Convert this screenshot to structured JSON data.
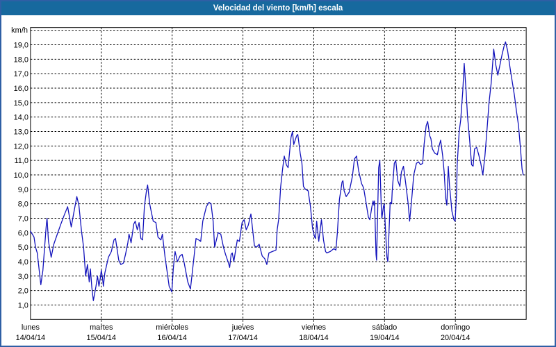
{
  "window": {
    "title": "Velocidad del viento [km/h] escala"
  },
  "chart_data": {
    "type": "line",
    "title": "Velocidad del viento [km/h] escala",
    "ylabel": "km/h",
    "ylim": [
      0,
      20
    ],
    "grid": "dashed",
    "legend": "none",
    "line_color": "#1111bb",
    "y_tick_labels": [
      "1,0",
      "2,0",
      "3,0",
      "4,0",
      "5,0",
      "6,0",
      "7,0",
      "8,0",
      "9,0",
      "10,0",
      "11,0",
      "12,0",
      "13,0",
      "14,0",
      "15,0",
      "16,0",
      "17,0",
      "18,0",
      "19,0"
    ],
    "days": [
      {
        "name": "lunes",
        "date": "14/04/14"
      },
      {
        "name": "martes",
        "date": "15/04/14"
      },
      {
        "name": "miércoles",
        "date": "16/04/14"
      },
      {
        "name": "jueves",
        "date": "17/04/14"
      },
      {
        "name": "viernes",
        "date": "18/04/14"
      },
      {
        "name": "sábado",
        "date": "19/04/14"
      },
      {
        "name": "domingo",
        "date": "20/04/14"
      }
    ],
    "x_unit": "hours_from_start",
    "x_range": [
      0,
      168
    ],
    "series": [
      {
        "name": "Velocidad del viento [km/h]",
        "color": "#1111bb",
        "points": [
          [
            0,
            6.1
          ],
          [
            0.6,
            5.9
          ],
          [
            1.2,
            5.7
          ],
          [
            1.7,
            5.0
          ],
          [
            2.3,
            4.6
          ],
          [
            2.9,
            3.5
          ],
          [
            3.5,
            2.4
          ],
          [
            4.2,
            3.4
          ],
          [
            4.8,
            5.0
          ],
          [
            5.3,
            6.4
          ],
          [
            5.6,
            7.0
          ],
          [
            6.1,
            5.4
          ],
          [
            7.0,
            4.3
          ],
          [
            7.9,
            5.2
          ],
          [
            9.1,
            5.9
          ],
          [
            10.3,
            6.6
          ],
          [
            11.4,
            7.2
          ],
          [
            12.6,
            7.8
          ],
          [
            13.3,
            7.0
          ],
          [
            13.8,
            6.4
          ],
          [
            14.7,
            7.4
          ],
          [
            15.7,
            8.5
          ],
          [
            16.4,
            7.9
          ],
          [
            17.3,
            6.1
          ],
          [
            18.0,
            5.0
          ],
          [
            18.7,
            3.0
          ],
          [
            19.3,
            3.8
          ],
          [
            19.9,
            2.6
          ],
          [
            20.3,
            3.5
          ],
          [
            20.8,
            2.2
          ],
          [
            21.3,
            1.3
          ],
          [
            22.2,
            2.3
          ],
          [
            22.7,
            3.0
          ],
          [
            23.2,
            2.3
          ],
          [
            23.7,
            2.9
          ],
          [
            24.0,
            3.4
          ],
          [
            24.4,
            2.9
          ],
          [
            24.7,
            2.3
          ],
          [
            25.2,
            3.2
          ],
          [
            26.4,
            4.3
          ],
          [
            27.4,
            4.7
          ],
          [
            28.3,
            5.5
          ],
          [
            28.8,
            5.6
          ],
          [
            29.9,
            4.1
          ],
          [
            30.6,
            3.8
          ],
          [
            31.5,
            3.9
          ],
          [
            32.2,
            4.5
          ],
          [
            33.0,
            5.3
          ],
          [
            33.4,
            5.9
          ],
          [
            34.1,
            5.3
          ],
          [
            35.0,
            6.6
          ],
          [
            35.5,
            6.8
          ],
          [
            36.2,
            6.2
          ],
          [
            36.8,
            6.7
          ],
          [
            37.4,
            5.6
          ],
          [
            38.0,
            5.5
          ],
          [
            38.6,
            7.8
          ],
          [
            39.3,
            8.9
          ],
          [
            39.7,
            9.3
          ],
          [
            40.4,
            8.0
          ],
          [
            40.9,
            7.5
          ],
          [
            41.6,
            6.8
          ],
          [
            42.5,
            6.7
          ],
          [
            43.2,
            5.7
          ],
          [
            44.2,
            5.5
          ],
          [
            44.7,
            5.9
          ],
          [
            45.6,
            4.3
          ],
          [
            46.3,
            3.3
          ],
          [
            47.0,
            2.3
          ],
          [
            47.9,
            1.9
          ],
          [
            48.4,
            3.5
          ],
          [
            49.0,
            4.7
          ],
          [
            49.8,
            4.0
          ],
          [
            50.7,
            4.4
          ],
          [
            51.4,
            4.5
          ],
          [
            52.1,
            3.9
          ],
          [
            53.3,
            2.6
          ],
          [
            54.2,
            2.1
          ],
          [
            55.4,
            4.3
          ],
          [
            56.1,
            5.6
          ],
          [
            57.0,
            5.5
          ],
          [
            57.7,
            5.4
          ],
          [
            58.4,
            6.8
          ],
          [
            59.6,
            7.8
          ],
          [
            60.5,
            8.1
          ],
          [
            61.2,
            8.0
          ],
          [
            61.9,
            6.8
          ],
          [
            62.4,
            5.0
          ],
          [
            63.6,
            6.0
          ],
          [
            64.5,
            5.9
          ],
          [
            65.4,
            5.0
          ],
          [
            66.1,
            4.5
          ],
          [
            67.1,
            3.9
          ],
          [
            67.5,
            3.6
          ],
          [
            68.0,
            4.5
          ],
          [
            68.4,
            4.6
          ],
          [
            68.9,
            4.0
          ],
          [
            69.6,
            4.9
          ],
          [
            70.1,
            5.5
          ],
          [
            70.8,
            5.4
          ],
          [
            71.7,
            6.7
          ],
          [
            72.4,
            6.9
          ],
          [
            73.1,
            6.2
          ],
          [
            73.8,
            6.5
          ],
          [
            74.7,
            7.3
          ],
          [
            75.9,
            5.1
          ],
          [
            76.6,
            5.0
          ],
          [
            77.5,
            5.2
          ],
          [
            78.5,
            4.4
          ],
          [
            79.4,
            4.2
          ],
          [
            80.1,
            3.8
          ],
          [
            80.8,
            4.6
          ],
          [
            82.0,
            4.7
          ],
          [
            83.2,
            4.8
          ],
          [
            83.6,
            6.2
          ],
          [
            84.1,
            6.9
          ],
          [
            84.8,
            9.2
          ],
          [
            85.5,
            10.5
          ],
          [
            86.0,
            11.3
          ],
          [
            86.7,
            10.7
          ],
          [
            87.3,
            10.5
          ],
          [
            88.3,
            12.6
          ],
          [
            88.8,
            13.0
          ],
          [
            89.2,
            12.1
          ],
          [
            90.2,
            12.7
          ],
          [
            90.6,
            12.8
          ],
          [
            91.4,
            11.5
          ],
          [
            92.0,
            10.8
          ],
          [
            92.5,
            9.2
          ],
          [
            93.2,
            9.0
          ],
          [
            94.1,
            8.9
          ],
          [
            94.9,
            7.8
          ],
          [
            95.6,
            6.3
          ],
          [
            96.3,
            5.7
          ],
          [
            96.6,
            5.6
          ],
          [
            97.0,
            6.8
          ],
          [
            97.7,
            5.4
          ],
          [
            98.6,
            6.9
          ],
          [
            99.3,
            5.5
          ],
          [
            100.0,
            4.7
          ],
          [
            100.4,
            4.6
          ],
          [
            101.6,
            4.7
          ],
          [
            102.8,
            4.9
          ],
          [
            103.5,
            4.8
          ],
          [
            104.0,
            6.0
          ],
          [
            104.7,
            8.3
          ],
          [
            105.6,
            9.5
          ],
          [
            105.9,
            9.6
          ],
          [
            106.3,
            8.9
          ],
          [
            107.0,
            8.5
          ],
          [
            108.0,
            8.8
          ],
          [
            109.1,
            9.9
          ],
          [
            109.8,
            11.1
          ],
          [
            110.5,
            11.3
          ],
          [
            111.2,
            10.3
          ],
          [
            112.2,
            9.4
          ],
          [
            112.9,
            9.1
          ],
          [
            113.8,
            8.0
          ],
          [
            114.5,
            7.1
          ],
          [
            115.0,
            6.9
          ],
          [
            115.7,
            7.8
          ],
          [
            116.1,
            8.2
          ],
          [
            116.4,
            7.9
          ],
          [
            116.6,
            8.2
          ],
          [
            117.1,
            4.5
          ],
          [
            117.3,
            4.1
          ],
          [
            118.0,
            10.5
          ],
          [
            118.4,
            11.0
          ],
          [
            118.9,
            7.6
          ],
          [
            119.1,
            7.0
          ],
          [
            119.6,
            7.8
          ],
          [
            119.9,
            8.0
          ],
          [
            120.3,
            6.2
          ],
          [
            120.8,
            4.3
          ],
          [
            121.1,
            4.0
          ],
          [
            121.9,
            8.1
          ],
          [
            122.4,
            8.0
          ],
          [
            122.6,
            8.9
          ],
          [
            123.3,
            10.8
          ],
          [
            123.8,
            11.0
          ],
          [
            124.5,
            9.6
          ],
          [
            125.2,
            9.2
          ],
          [
            125.7,
            10.2
          ],
          [
            126.4,
            10.6
          ],
          [
            127.3,
            9.2
          ],
          [
            128.0,
            8.0
          ],
          [
            128.5,
            6.8
          ],
          [
            129.2,
            8.3
          ],
          [
            129.9,
            10.0
          ],
          [
            130.8,
            10.8
          ],
          [
            131.5,
            10.9
          ],
          [
            132.2,
            10.7
          ],
          [
            132.9,
            10.8
          ],
          [
            133.4,
            12.1
          ],
          [
            134.1,
            13.4
          ],
          [
            134.6,
            13.7
          ],
          [
            135.3,
            12.7
          ],
          [
            135.7,
            12.5
          ],
          [
            136.2,
            11.8
          ],
          [
            137.0,
            11.5
          ],
          [
            137.9,
            11.4
          ],
          [
            138.5,
            12.0
          ],
          [
            139.0,
            12.4
          ],
          [
            139.7,
            11.3
          ],
          [
            140.2,
            10.2
          ],
          [
            140.7,
            8.4
          ],
          [
            141.1,
            7.9
          ],
          [
            141.6,
            10.6
          ],
          [
            142.0,
            9.3
          ],
          [
            142.8,
            7.5
          ],
          [
            143.5,
            6.9
          ],
          [
            143.9,
            6.8
          ],
          [
            144.4,
            8.7
          ],
          [
            144.6,
            10.7
          ],
          [
            145.3,
            13.0
          ],
          [
            145.8,
            13.8
          ],
          [
            146.5,
            15.8
          ],
          [
            147.0,
            17.7
          ],
          [
            147.7,
            15.6
          ],
          [
            148.1,
            14.1
          ],
          [
            148.8,
            12.5
          ],
          [
            149.5,
            10.7
          ],
          [
            150.0,
            10.6
          ],
          [
            150.5,
            11.8
          ],
          [
            151.2,
            11.9
          ],
          [
            151.9,
            11.4
          ],
          [
            152.6,
            10.8
          ],
          [
            153.3,
            10.0
          ],
          [
            154.0,
            11.3
          ],
          [
            154.7,
            13.1
          ],
          [
            155.4,
            15.0
          ],
          [
            156.1,
            16.3
          ],
          [
            156.6,
            17.6
          ],
          [
            157.0,
            18.7
          ],
          [
            157.7,
            17.6
          ],
          [
            158.4,
            16.9
          ],
          [
            159.1,
            17.6
          ],
          [
            159.8,
            18.3
          ],
          [
            160.5,
            18.9
          ],
          [
            161.0,
            19.2
          ],
          [
            161.7,
            18.6
          ],
          [
            162.6,
            17.3
          ],
          [
            163.3,
            16.4
          ],
          [
            164.0,
            15.5
          ],
          [
            164.7,
            14.4
          ],
          [
            165.4,
            13.4
          ],
          [
            166.1,
            11.7
          ],
          [
            166.6,
            10.4
          ],
          [
            167.0,
            10.0
          ]
        ]
      }
    ]
  }
}
